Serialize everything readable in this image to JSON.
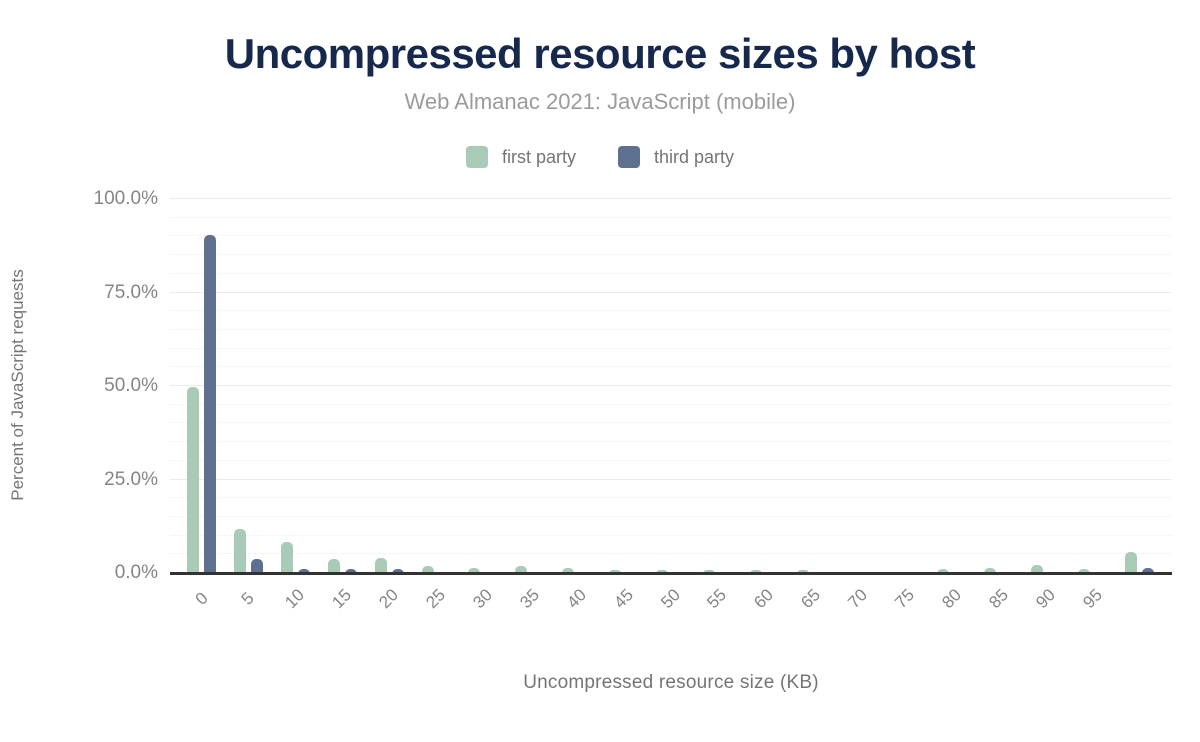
{
  "chart_data": {
    "type": "bar",
    "title": "Uncompressed resource sizes by host",
    "subtitle": "Web Almanac 2021: JavaScript (mobile)",
    "xlabel": "Uncompressed resource size (KB)",
    "ylabel": "Percent of JavaScript requests",
    "categories": [
      "0",
      "5",
      "10",
      "15",
      "20",
      "25",
      "30",
      "35",
      "40",
      "45",
      "50",
      "55",
      "60",
      "65",
      "70",
      "75",
      "80",
      "85",
      "90",
      "95",
      ""
    ],
    "series": [
      {
        "name": "first party",
        "color": "#a8cab6",
        "values": [
          49.4,
          11.5,
          8.0,
          3.6,
          3.7,
          1.7,
          1.2,
          1.5,
          1.0,
          0.6,
          0.6,
          0.6,
          0.6,
          0.6,
          0.1,
          0.1,
          0.8,
          1.1,
          1.9,
          0.7,
          5.3
        ]
      },
      {
        "name": "third party",
        "color": "#5e7090",
        "values": [
          90.0,
          3.4,
          0.8,
          0.9,
          0.9,
          0.1,
          0.1,
          0.1,
          0.1,
          0.1,
          0.1,
          0.1,
          0.1,
          0.1,
          0.0,
          0.0,
          0.1,
          0.1,
          0.1,
          0.0,
          1.1
        ]
      }
    ],
    "ylim": [
      0,
      100
    ],
    "yticks": [
      {
        "value": 0,
        "label": "0.0%"
      },
      {
        "value": 25,
        "label": "25.0%"
      },
      {
        "value": 50,
        "label": "50.0%"
      },
      {
        "value": 75,
        "label": "75.0%"
      },
      {
        "value": 100,
        "label": "100.0%"
      }
    ],
    "grid": {
      "minor_step": 5,
      "major_step": 25,
      "minor_color": "#f6f6f6",
      "major_color": "#ebebeb"
    },
    "legend_position": "top",
    "colors": {
      "title": "#16294d",
      "subtitle": "#9b9b9b",
      "axis_text": "#858585",
      "axis_title": "#757575",
      "axis_line": "#333333",
      "background": "#ffffff"
    }
  }
}
